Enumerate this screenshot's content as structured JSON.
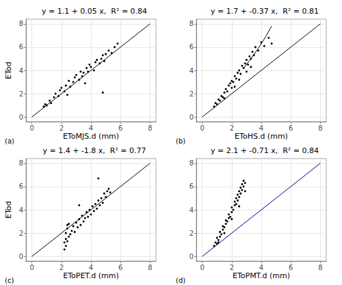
{
  "chart_data": [
    {
      "type": "scatter",
      "title": "y = 1.1 + 0.05 x,  R² = 0.84",
      "x_label": "EToMJS.d (mm)",
      "y_label": "ETod",
      "annotations": [
        "(a)"
      ],
      "xlim": [
        -0.4,
        8.4
      ],
      "ylim": [
        -0.4,
        8.4
      ],
      "xticks": [
        0,
        2,
        4,
        6,
        8
      ],
      "yticks": [
        0,
        2,
        4,
        6,
        8
      ],
      "grid": true,
      "series": [
        {
          "type": "scatter",
          "color": "#000000",
          "x": [
            0.8,
            0.9,
            1.0,
            1.2,
            1.3,
            1.5,
            1.6,
            1.8,
            1.9,
            2.0,
            2.2,
            2.3,
            2.5,
            2.6,
            2.8,
            2.9,
            3.0,
            3.2,
            3.3,
            3.4,
            3.5,
            3.7,
            3.8,
            3.9,
            4.0,
            4.2,
            4.3,
            4.4,
            4.6,
            4.7,
            4.8,
            4.9,
            5.0,
            5.2,
            5.4,
            5.6,
            5.8,
            2.4,
            3.6,
            4.8
          ],
          "values": [
            0.9,
            1.1,
            1.0,
            1.4,
            1.2,
            1.7,
            2.0,
            1.8,
            2.3,
            2.5,
            2.2,
            2.7,
            3.1,
            2.6,
            3.0,
            3.4,
            3.6,
            3.2,
            3.9,
            3.5,
            3.8,
            4.2,
            3.9,
            4.5,
            4.3,
            4.0,
            4.7,
            4.9,
            4.6,
            5.0,
            5.3,
            4.8,
            5.4,
            5.7,
            5.5,
            6.0,
            6.3,
            1.9,
            2.9,
            2.1
          ]
        },
        {
          "type": "line",
          "color": "#000000",
          "x": [
            0,
            8
          ],
          "values": [
            0,
            8
          ]
        }
      ]
    },
    {
      "type": "scatter",
      "title": "y = 1.7 + -0.37 x,  R² = 0.81",
      "x_label": "EToHS.d (mm)",
      "annotations": [
        "(b)"
      ],
      "xlim": [
        -0.4,
        8.4
      ],
      "ylim": [
        -0.4,
        8.4
      ],
      "xticks": [
        0,
        2,
        4,
        6,
        8
      ],
      "yticks": [
        0,
        2,
        4,
        6,
        8
      ],
      "grid": true,
      "series": [
        {
          "type": "scatter",
          "color": "#000000",
          "x": [
            0.8,
            0.9,
            1.0,
            1.1,
            1.2,
            1.3,
            1.4,
            1.5,
            1.6,
            1.7,
            1.8,
            1.9,
            2.0,
            2.1,
            2.2,
            2.3,
            2.4,
            2.5,
            2.6,
            2.7,
            2.8,
            2.9,
            3.0,
            3.1,
            3.2,
            3.3,
            3.4,
            3.5,
            3.6,
            3.8,
            4.0,
            4.2,
            4.5,
            4.7,
            1.5,
            2.0,
            2.5,
            3.0,
            2.2,
            3.3
          ],
          "values": [
            0.9,
            1.2,
            1.1,
            1.5,
            1.4,
            1.8,
            1.7,
            2.1,
            2.4,
            2.2,
            2.7,
            2.9,
            3.1,
            3.0,
            3.5,
            3.3,
            3.8,
            4.0,
            3.7,
            4.4,
            4.2,
            4.6,
            4.9,
            4.5,
            5.2,
            5.0,
            5.6,
            5.3,
            6.0,
            5.7,
            6.4,
            6.1,
            6.8,
            6.3,
            1.6,
            2.5,
            3.2,
            3.9,
            2.6,
            4.3
          ]
        },
        {
          "type": "line",
          "color": "#000000",
          "x": [
            2.8,
            3.3,
            3.8,
            4.3,
            4.7
          ],
          "values": [
            4.2,
            5.0,
            5.9,
            6.9,
            7.8
          ]
        },
        {
          "type": "line",
          "color": "#000000",
          "x": [
            0,
            8
          ],
          "values": [
            0,
            8
          ]
        }
      ]
    },
    {
      "type": "scatter",
      "title": "y = 1.4 + -1.8 x,  R² = 0.77",
      "x_label": "EToPET.d (mm)",
      "y_label": "ETod",
      "annotations": [
        "(c)"
      ],
      "xlim": [
        -0.4,
        8.4
      ],
      "ylim": [
        -0.4,
        8.4
      ],
      "xticks": [
        0,
        2,
        4,
        6,
        8
      ],
      "yticks": [
        0,
        2,
        4,
        6,
        8
      ],
      "grid": true,
      "series": [
        {
          "type": "scatter",
          "color": "#000000",
          "x": [
            2.2,
            2.2,
            2.3,
            2.3,
            2.3,
            2.4,
            2.4,
            2.5,
            2.5,
            2.6,
            2.7,
            2.8,
            2.9,
            3.0,
            3.1,
            3.2,
            3.3,
            3.4,
            3.5,
            3.6,
            3.7,
            3.8,
            3.9,
            4.0,
            4.1,
            4.2,
            4.3,
            4.4,
            4.5,
            4.6,
            4.7,
            4.8,
            4.9,
            5.0,
            5.1,
            5.2,
            5.3,
            2.4,
            3.2,
            4.5
          ],
          "values": [
            0.6,
            1.2,
            1.5,
            0.9,
            2.0,
            1.3,
            2.4,
            1.7,
            2.8,
            1.9,
            2.2,
            2.6,
            2.1,
            2.9,
            2.5,
            3.2,
            2.7,
            3.5,
            3.0,
            3.3,
            3.8,
            3.4,
            4.0,
            3.6,
            4.3,
            3.9,
            4.5,
            4.1,
            4.8,
            4.4,
            5.0,
            4.6,
            5.4,
            5.1,
            5.6,
            5.8,
            5.5,
            2.7,
            4.4,
            6.7
          ]
        },
        {
          "type": "line",
          "color": "#000000",
          "x": [
            0,
            8
          ],
          "values": [
            0,
            8
          ]
        }
      ]
    },
    {
      "type": "scatter",
      "title": "y = 2.1 + -0.71 x,  R² = 0.84",
      "x_label": "EToPMT.d (mm)",
      "annotations": [
        "(d)"
      ],
      "xlim": [
        -0.4,
        8.4
      ],
      "ylim": [
        -0.4,
        8.4
      ],
      "xticks": [
        0,
        2,
        4,
        6,
        8
      ],
      "yticks": [
        0,
        2,
        4,
        6,
        8
      ],
      "grid": true,
      "series": [
        {
          "type": "scatter",
          "color": "#000000",
          "x": [
            0.8,
            0.9,
            1.0,
            1.0,
            1.1,
            1.2,
            1.2,
            1.3,
            1.4,
            1.4,
            1.5,
            1.6,
            1.6,
            1.7,
            1.8,
            1.8,
            1.9,
            2.0,
            2.0,
            2.1,
            2.2,
            2.2,
            2.3,
            2.3,
            2.4,
            2.4,
            2.5,
            2.5,
            2.6,
            2.6,
            2.7,
            2.7,
            2.8,
            2.8,
            2.9,
            1.5,
            2.0,
            2.5,
            1.1,
            2.9
          ],
          "values": [
            0.9,
            1.2,
            1.1,
            1.6,
            1.4,
            1.7,
            2.1,
            1.9,
            2.3,
            2.6,
            2.5,
            2.8,
            3.1,
            3.0,
            3.3,
            3.6,
            3.4,
            3.8,
            4.2,
            4.0,
            4.4,
            4.7,
            4.5,
            5.0,
            4.8,
            5.3,
            5.1,
            5.6,
            5.4,
            5.9,
            5.7,
            6.2,
            6.0,
            6.5,
            6.3,
            2.0,
            3.2,
            4.3,
            1.2,
            5.6
          ]
        },
        {
          "type": "line",
          "color": "#00008b",
          "x": [
            0,
            8
          ],
          "values": [
            0,
            8
          ]
        }
      ]
    }
  ]
}
